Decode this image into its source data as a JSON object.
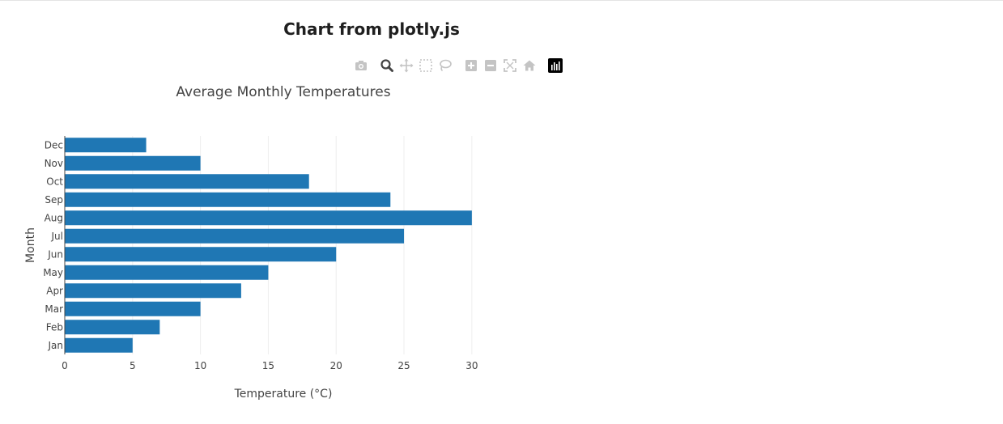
{
  "page": {
    "heading": "Chart from plotly.js"
  },
  "modebar": {
    "buttons": [
      {
        "icon": "camera-icon",
        "active": false
      },
      {
        "icon": "zoom-icon",
        "active": true
      },
      {
        "icon": "pan-icon",
        "active": false
      },
      {
        "icon": "box-select-icon",
        "active": false
      },
      {
        "icon": "lasso-select-icon",
        "active": false
      },
      {
        "icon": "zoom-in-icon",
        "active": false
      },
      {
        "icon": "zoom-out-icon",
        "active": false
      },
      {
        "icon": "autoscale-icon",
        "active": false
      },
      {
        "icon": "reset-axes-icon",
        "active": false
      },
      {
        "icon": "plotly-logo-icon",
        "active": false
      }
    ],
    "colors": {
      "idle": "#c4c4c4",
      "active": "#444444",
      "logo_bg": "#000000"
    }
  },
  "chart_data": {
    "type": "bar",
    "orientation": "horizontal",
    "title": "Average Monthly Temperatures",
    "xlabel": "Temperature (°C)",
    "ylabel": "Month",
    "categories": [
      "Jan",
      "Feb",
      "Mar",
      "Apr",
      "May",
      "Jun",
      "Jul",
      "Aug",
      "Sep",
      "Oct",
      "Nov",
      "Dec"
    ],
    "values": [
      5,
      7,
      10,
      13,
      15,
      20,
      25,
      30,
      24,
      18,
      10,
      6
    ],
    "xlim": [
      0,
      31.5
    ],
    "xticks": [
      0,
      5,
      10,
      15,
      20,
      25,
      30
    ],
    "grid": true,
    "legend": "none",
    "colors": {
      "bar": "#1f77b4",
      "grid": "#eeeeee",
      "axis_line": "#444444",
      "text": "#444444"
    }
  }
}
